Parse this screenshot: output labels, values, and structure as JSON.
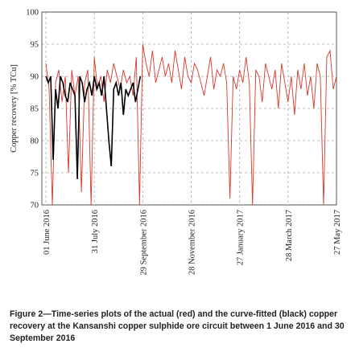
{
  "chart_data": {
    "type": "line",
    "ylabel": "Copper recovery [% TCu]",
    "caption": "Figure 2—Time-series plots of the actual (red) and the curve-fitted (black) copper recovery at the Kansanshi copper sulphide ore circuit between 1 June 2016 and 30 September 2016",
    "xlim": [
      "2016-05-27",
      "2017-05-27"
    ],
    "xticks": [
      {
        "value": "2016-06-01",
        "label": "01 June 2016"
      },
      {
        "value": "2016-07-31",
        "label": "31 July 2016"
      },
      {
        "value": "2016-09-29",
        "label": "29 September 2016"
      },
      {
        "value": "2016-11-28",
        "label": "28 November 2016"
      },
      {
        "value": "2017-01-27",
        "label": "27 January 2017"
      },
      {
        "value": "2017-03-28",
        "label": "28 March 2017"
      },
      {
        "value": "2017-05-27",
        "label": "27 May 2017"
      }
    ],
    "ylim": [
      70,
      100
    ],
    "yticks": [
      70,
      75,
      80,
      85,
      90,
      95,
      100
    ],
    "grid": true,
    "series": [
      {
        "color": "#d4372c",
        "x": [
          "2016-06-01",
          "2016-06-05",
          "2016-06-09",
          "2016-06-13",
          "2016-06-17",
          "2016-06-21",
          "2016-06-25",
          "2016-06-29",
          "2016-07-03",
          "2016-07-07",
          "2016-07-11",
          "2016-07-15",
          "2016-07-19",
          "2016-07-23",
          "2016-07-27",
          "2016-07-31",
          "2016-08-04",
          "2016-08-08",
          "2016-08-12",
          "2016-08-16",
          "2016-08-20",
          "2016-08-24",
          "2016-08-28",
          "2016-09-01",
          "2016-09-05",
          "2016-09-09",
          "2016-09-13",
          "2016-09-17",
          "2016-09-21",
          "2016-09-25",
          "2016-09-29",
          "2016-10-03",
          "2016-10-07",
          "2016-10-11",
          "2016-10-15",
          "2016-10-19",
          "2016-10-23",
          "2016-10-27",
          "2016-10-31",
          "2016-11-04",
          "2016-11-08",
          "2016-11-12",
          "2016-11-16",
          "2016-11-20",
          "2016-11-24",
          "2016-11-28",
          "2016-12-02",
          "2016-12-06",
          "2016-12-10",
          "2016-12-14",
          "2016-12-18",
          "2016-12-22",
          "2016-12-26",
          "2016-12-30",
          "2017-01-03",
          "2017-01-07",
          "2017-01-11",
          "2017-01-15",
          "2017-01-19",
          "2017-01-23",
          "2017-01-27",
          "2017-01-31",
          "2017-02-04",
          "2017-02-08",
          "2017-02-12",
          "2017-02-16",
          "2017-02-20",
          "2017-02-24",
          "2017-02-28",
          "2017-03-04",
          "2017-03-08",
          "2017-03-12",
          "2017-03-16",
          "2017-03-20",
          "2017-03-24",
          "2017-03-28",
          "2017-04-01",
          "2017-04-05",
          "2017-04-09",
          "2017-04-13",
          "2017-04-17",
          "2017-04-21",
          "2017-04-25",
          "2017-04-29",
          "2017-05-03",
          "2017-05-07",
          "2017-05-11",
          "2017-05-15",
          "2017-05-19",
          "2017-05-23",
          "2017-05-27"
        ],
        "values": [
          92,
          88,
          70,
          89,
          91,
          86,
          90,
          75,
          91,
          87,
          90,
          72,
          89,
          91,
          70,
          93,
          88,
          90,
          86,
          91,
          89,
          92,
          90,
          88,
          91,
          89,
          90,
          87,
          93,
          70,
          95,
          92,
          90,
          94,
          89,
          91,
          93,
          90,
          92,
          89,
          94,
          91,
          88,
          93,
          90,
          89,
          92,
          91,
          89,
          87,
          90,
          93,
          88,
          91,
          90,
          92,
          89,
          71,
          90,
          88,
          91,
          89,
          93,
          89,
          70,
          91,
          90,
          86,
          92,
          90,
          88,
          91,
          85,
          92,
          89,
          86,
          90,
          84,
          91,
          88,
          92,
          87,
          90,
          85,
          92,
          90,
          70,
          93,
          94,
          88,
          90
        ]
      },
      {
        "color": "#000000",
        "x": [
          "2016-06-01",
          "2016-06-04",
          "2016-06-07",
          "2016-06-10",
          "2016-06-13",
          "2016-06-16",
          "2016-06-19",
          "2016-06-22",
          "2016-06-25",
          "2016-06-28",
          "2016-07-01",
          "2016-07-04",
          "2016-07-07",
          "2016-07-10",
          "2016-07-13",
          "2016-07-16",
          "2016-07-19",
          "2016-07-22",
          "2016-07-25",
          "2016-07-28",
          "2016-07-31",
          "2016-08-03",
          "2016-08-06",
          "2016-08-09",
          "2016-08-12",
          "2016-08-15",
          "2016-08-18",
          "2016-08-21",
          "2016-08-24",
          "2016-08-27",
          "2016-08-30",
          "2016-09-02",
          "2016-09-05",
          "2016-09-08",
          "2016-09-11",
          "2016-09-14",
          "2016-09-17",
          "2016-09-20",
          "2016-09-23",
          "2016-09-26"
        ],
        "values": [
          90,
          89,
          90,
          77,
          88,
          85,
          90,
          89,
          87,
          86,
          89,
          88,
          87,
          74,
          90,
          89,
          86,
          88,
          89,
          87,
          90,
          88,
          89,
          87,
          90,
          85,
          80,
          76,
          88,
          89,
          87,
          89,
          84,
          88,
          87,
          88,
          89,
          86,
          88,
          90
        ]
      }
    ]
  }
}
